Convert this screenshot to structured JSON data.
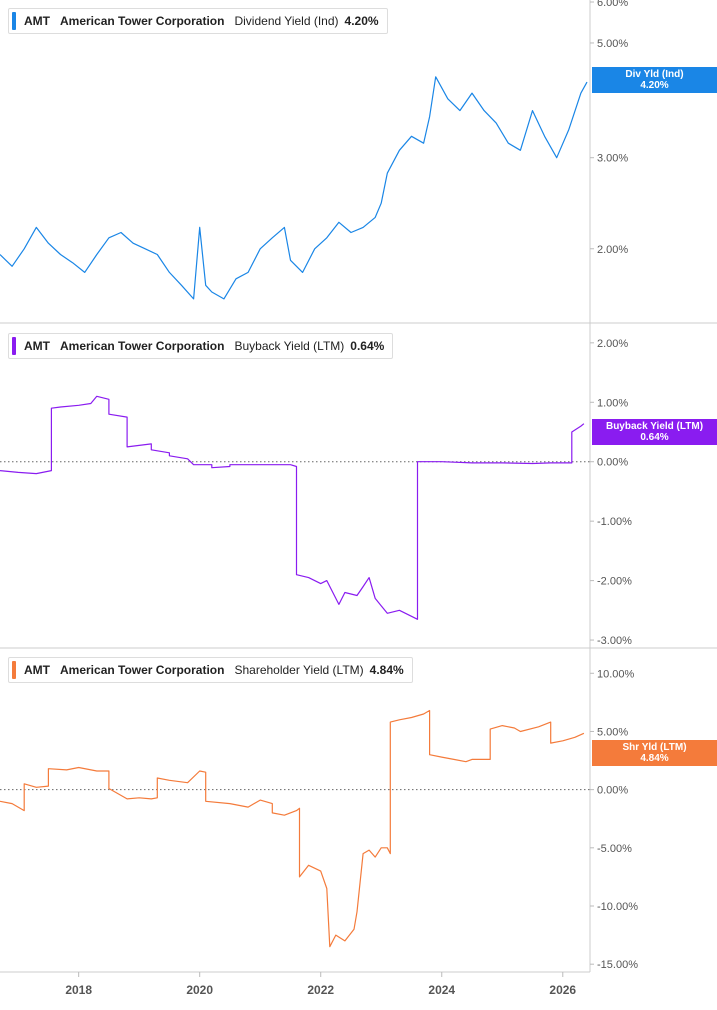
{
  "colors": {
    "dividend": "#1a86e6",
    "buyback": "#8a1cf0",
    "shareholder": "#f47b3b",
    "grid": "#e6e6e6",
    "axis_text": "#555555"
  },
  "x_axis": {
    "tick_labels": [
      "2018",
      "2020",
      "2022",
      "2024",
      "2026"
    ],
    "range": [
      2016.7,
      2026.45
    ]
  },
  "panels": [
    {
      "ticker": "AMT",
      "company": "American Tower Corporation",
      "metric": "Dividend Yield (Ind)",
      "value": "4.20%",
      "flag_title": "Div Yld (Ind)",
      "flag_value": "4.20%"
    },
    {
      "ticker": "AMT",
      "company": "American Tower Corporation",
      "metric": "Buyback Yield (LTM)",
      "value": "0.64%",
      "flag_title": "Buyback Yield (LTM)",
      "flag_value": "0.64%"
    },
    {
      "ticker": "AMT",
      "company": "American Tower Corporation",
      "metric": "Shareholder Yield (LTM)",
      "value": "4.84%",
      "flag_title": "Shr Yld (LTM)",
      "flag_value": "4.84%"
    }
  ],
  "chart_data": [
    {
      "type": "line",
      "title": "AMT American Tower Corporation Dividend Yield (Ind) 4.20%",
      "y_scale": "log",
      "ylim": [
        1.45,
        6.0
      ],
      "y_ticks": [
        2.0,
        3.0,
        5.0,
        6.0
      ],
      "y_tick_labels": [
        "2.00%",
        "3.00%",
        "5.00%",
        "6.00%"
      ],
      "series": [
        {
          "name": "Dividend Yield (Ind)",
          "x": [
            2016.7,
            2016.9,
            2017.1,
            2017.3,
            2017.5,
            2017.7,
            2017.9,
            2018.1,
            2018.3,
            2018.5,
            2018.7,
            2018.9,
            2019.1,
            2019.3,
            2019.5,
            2019.7,
            2019.9,
            2020.0,
            2020.1,
            2020.2,
            2020.4,
            2020.6,
            2020.8,
            2021.0,
            2021.2,
            2021.4,
            2021.5,
            2021.7,
            2021.9,
            2022.1,
            2022.3,
            2022.5,
            2022.7,
            2022.9,
            2023.0,
            2023.1,
            2023.3,
            2023.5,
            2023.7,
            2023.8,
            2023.9,
            2024.1,
            2024.3,
            2024.5,
            2024.7,
            2024.9,
            2025.1,
            2025.3,
            2025.5,
            2025.7,
            2025.9,
            2026.1,
            2026.3,
            2026.4
          ],
          "y": [
            1.95,
            1.85,
            2.0,
            2.2,
            2.05,
            1.95,
            1.88,
            1.8,
            1.95,
            2.1,
            2.15,
            2.05,
            2.0,
            1.95,
            1.8,
            1.7,
            1.6,
            2.2,
            1.7,
            1.65,
            1.6,
            1.75,
            1.8,
            2.0,
            2.1,
            2.2,
            1.9,
            1.8,
            2.0,
            2.1,
            2.25,
            2.15,
            2.2,
            2.3,
            2.45,
            2.8,
            3.1,
            3.3,
            3.2,
            3.6,
            4.3,
            3.9,
            3.7,
            4.0,
            3.7,
            3.5,
            3.2,
            3.1,
            3.7,
            3.3,
            3.0,
            3.4,
            4.0,
            4.2
          ]
        }
      ]
    },
    {
      "type": "line",
      "title": "AMT American Tower Corporation Buyback Yield (LTM) 0.64%",
      "ylim": [
        -3.1,
        2.3
      ],
      "y_ticks": [
        -3,
        -2,
        -1,
        0,
        1,
        2
      ],
      "y_tick_labels": [
        "-3.00%",
        "-2.00%",
        "-1.00%",
        "0.00%",
        "1.00%",
        "2.00%"
      ],
      "series": [
        {
          "name": "Buyback Yield (LTM)",
          "x": [
            2016.7,
            2017.0,
            2017.3,
            2017.55,
            2017.55,
            2017.7,
            2018.0,
            2018.2,
            2018.3,
            2018.5,
            2018.5,
            2018.8,
            2018.8,
            2019.2,
            2019.2,
            2019.5,
            2019.5,
            2019.8,
            2019.9,
            2020.2,
            2020.2,
            2020.5,
            2020.5,
            2021.0,
            2021.3,
            2021.5,
            2021.6,
            2021.6,
            2021.8,
            2022.0,
            2022.1,
            2022.3,
            2022.4,
            2022.6,
            2022.7,
            2022.8,
            2022.9,
            2023.1,
            2023.3,
            2023.5,
            2023.6,
            2023.6,
            2024.0,
            2024.5,
            2025.0,
            2025.5,
            2025.8,
            2026.15,
            2026.15,
            2026.3,
            2026.35
          ],
          "y": [
            -0.15,
            -0.18,
            -0.2,
            -0.15,
            0.9,
            0.92,
            0.95,
            0.98,
            1.1,
            1.05,
            0.8,
            0.75,
            0.25,
            0.3,
            0.2,
            0.15,
            0.1,
            0.05,
            -0.05,
            -0.05,
            -0.1,
            -0.08,
            -0.05,
            -0.05,
            -0.05,
            -0.05,
            -0.08,
            -1.9,
            -1.95,
            -2.05,
            -2.0,
            -2.4,
            -2.2,
            -2.25,
            -2.1,
            -1.95,
            -2.3,
            -2.55,
            -2.5,
            -2.6,
            -2.65,
            0.0,
            0.0,
            -0.02,
            -0.02,
            -0.03,
            -0.02,
            -0.02,
            0.5,
            0.6,
            0.64
          ]
        }
      ]
    },
    {
      "type": "line",
      "title": "AMT American Tower Corporation Shareholder Yield (LTM) 4.84%",
      "ylim": [
        -15.5,
        12.0
      ],
      "y_ticks": [
        -15,
        -10,
        -5,
        0,
        5,
        10
      ],
      "y_tick_labels": [
        "-15.00%",
        "-10.00%",
        "-5.00%",
        "0.00%",
        "5.00%",
        "10.00%"
      ],
      "series": [
        {
          "name": "Shareholder Yield (LTM)",
          "x": [
            2016.7,
            2016.9,
            2017.1,
            2017.1,
            2017.3,
            2017.5,
            2017.5,
            2017.8,
            2018.0,
            2018.3,
            2018.5,
            2018.5,
            2018.8,
            2019.0,
            2019.2,
            2019.3,
            2019.3,
            2019.5,
            2019.8,
            2020.0,
            2020.1,
            2020.1,
            2020.5,
            2020.8,
            2021.0,
            2021.2,
            2021.2,
            2021.4,
            2021.6,
            2021.65,
            2021.65,
            2021.8,
            2022.0,
            2022.1,
            2022.15,
            2022.25,
            2022.4,
            2022.55,
            2022.6,
            2022.7,
            2022.8,
            2022.9,
            2023.0,
            2023.1,
            2023.15,
            2023.15,
            2023.3,
            2023.5,
            2023.7,
            2023.8,
            2023.8,
            2024.0,
            2024.2,
            2024.4,
            2024.5,
            2024.8,
            2024.8,
            2025.0,
            2025.2,
            2025.3,
            2025.6,
            2025.8,
            2025.8,
            2026.0,
            2026.2,
            2026.35
          ],
          "y": [
            -1.0,
            -1.2,
            -1.8,
            0.5,
            0.2,
            0.3,
            1.8,
            1.7,
            1.9,
            1.6,
            1.6,
            0.1,
            -0.8,
            -0.7,
            -0.8,
            -0.7,
            1.0,
            0.8,
            0.6,
            1.6,
            1.5,
            -1.0,
            -1.2,
            -1.5,
            -0.9,
            -1.2,
            -2.0,
            -2.2,
            -1.8,
            -1.6,
            -7.5,
            -6.5,
            -7.0,
            -8.5,
            -13.5,
            -12.5,
            -13.0,
            -12.0,
            -10.5,
            -5.5,
            -5.2,
            -5.8,
            -5.0,
            -5.0,
            -5.5,
            5.8,
            6.0,
            6.2,
            6.5,
            6.8,
            3.0,
            2.8,
            2.6,
            2.4,
            2.6,
            2.6,
            5.2,
            5.5,
            5.3,
            5.0,
            5.4,
            5.8,
            4.0,
            4.2,
            4.5,
            4.84
          ]
        }
      ]
    }
  ]
}
